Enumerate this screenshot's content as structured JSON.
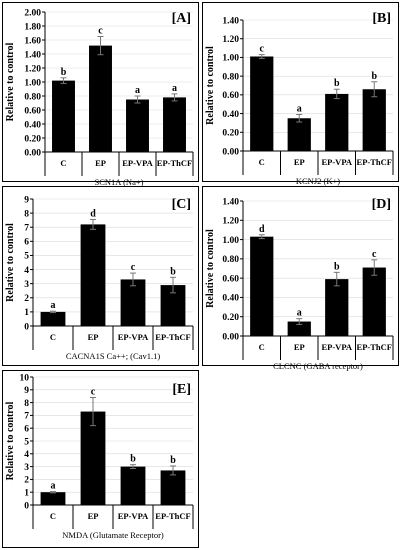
{
  "chart_data": [
    {
      "type": "bar",
      "panel_label": "[A]",
      "categories": [
        "C",
        "EP",
        "EP-VPA",
        "EP-ThCF"
      ],
      "values": [
        1.02,
        1.52,
        0.75,
        0.78
      ],
      "errors": [
        0.04,
        0.13,
        0.05,
        0.05
      ],
      "letters": [
        "b",
        "c",
        "a",
        "a"
      ],
      "xlabel": "SCN1A (Na+)",
      "ylabel": "Relative to control",
      "ylim": [
        0,
        2
      ],
      "yticks": [
        "0.00",
        "0.20",
        "0.40",
        "0.60",
        "0.80",
        "1.00",
        "1.20",
        "1.40",
        "1.60",
        "1.80",
        "2.00"
      ],
      "grid": true
    },
    {
      "type": "bar",
      "panel_label": "[B]",
      "categories": [
        "C",
        "EP",
        "EP-VPA",
        "EP-ThCF"
      ],
      "values": [
        1.01,
        0.35,
        0.61,
        0.66
      ],
      "errors": [
        0.02,
        0.04,
        0.05,
        0.08
      ],
      "letters": [
        "c",
        "a",
        "b",
        "b"
      ],
      "xlabel": "KCNJ2 (K+)",
      "ylabel": "Relative to control",
      "ylim": [
        0,
        1.4
      ],
      "yticks": [
        "0.00",
        "0.20",
        "0.40",
        "0.60",
        "0.80",
        "1.00",
        "1.20",
        "1.40"
      ],
      "grid": true
    },
    {
      "type": "bar",
      "panel_label": "[C]",
      "categories": [
        "C",
        "EP",
        "EP-VPA",
        "EP-ThCF"
      ],
      "values": [
        1.0,
        7.2,
        3.3,
        2.9
      ],
      "errors": [
        0.05,
        0.35,
        0.45,
        0.55
      ],
      "letters": [
        "a",
        "d",
        "c",
        "b"
      ],
      "xlabel": "CACNA1S Ca++; (Cav1.1)",
      "ylabel": "Relative to control",
      "ylim": [
        0,
        9
      ],
      "yticks": [
        "0",
        "1",
        "2",
        "3",
        "4",
        "5",
        "6",
        "7",
        "8",
        "9"
      ],
      "grid": true
    },
    {
      "type": "bar",
      "panel_label": "[D]",
      "categories": [
        "C",
        "EP",
        "EP-VPA",
        "EP-ThCF"
      ],
      "values": [
        1.03,
        0.15,
        0.59,
        0.71
      ],
      "errors": [
        0.02,
        0.03,
        0.07,
        0.08
      ],
      "letters": [
        "d",
        "a",
        "b",
        "c"
      ],
      "xlabel": "CLCNC (GABA receptor)",
      "ylabel": "Relative to control",
      "ylim": [
        0,
        1.4
      ],
      "yticks": [
        "0.00",
        "0.20",
        "0.40",
        "0.60",
        "0.80",
        "1.00",
        "1.20",
        "1.40"
      ],
      "grid": true
    },
    {
      "type": "bar",
      "panel_label": "[E]",
      "categories": [
        "C",
        "EP",
        "EP-VPA",
        "EP-ThCF"
      ],
      "values": [
        1.0,
        7.3,
        3.0,
        2.7
      ],
      "errors": [
        0.05,
        1.1,
        0.15,
        0.35
      ],
      "letters": [
        "a",
        "c",
        "b",
        "b"
      ],
      "xlabel": "NMDA (Glutamate Receptor)",
      "ylabel": "Relative to control",
      "ylim": [
        0,
        10
      ],
      "yticks": [
        "0",
        "1",
        "2",
        "3",
        "4",
        "5",
        "6",
        "7",
        "8",
        "9",
        "10"
      ],
      "grid": true
    }
  ]
}
